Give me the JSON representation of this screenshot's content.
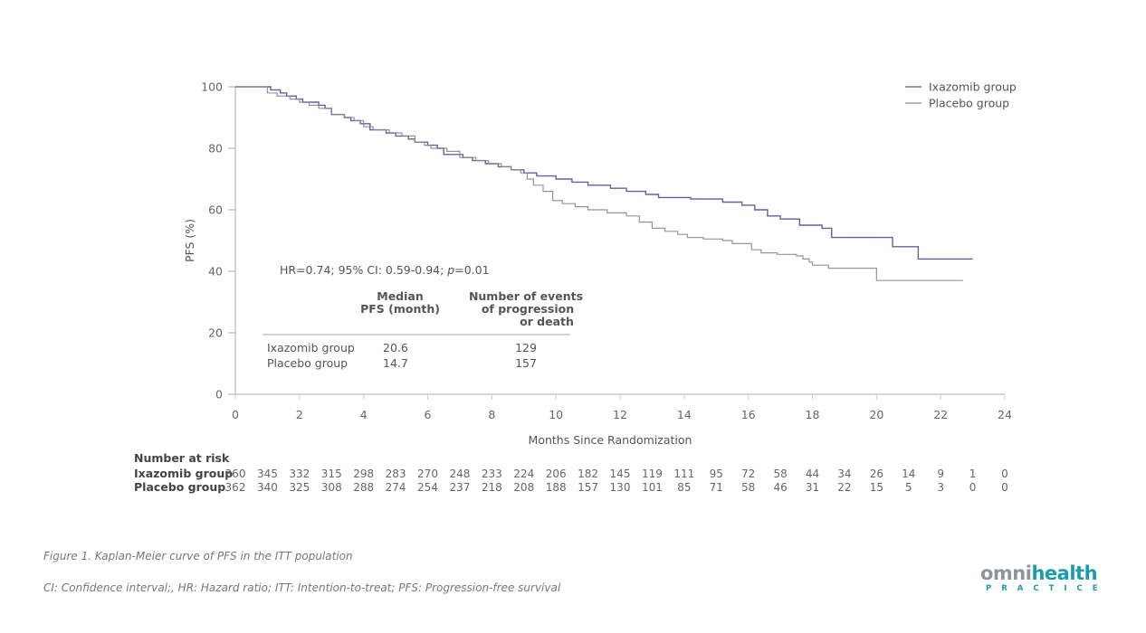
{
  "chart_data": {
    "type": "line",
    "subtype": "kaplan-meier-step",
    "ylabel": "PFS (%)",
    "xlabel": "Months Since Randomization",
    "xlim": [
      0,
      24
    ],
    "ylim": [
      0,
      100
    ],
    "x_ticks": [
      0,
      2,
      4,
      6,
      8,
      10,
      12,
      14,
      16,
      18,
      20,
      22,
      24
    ],
    "y_ticks": [
      0,
      20,
      40,
      60,
      80,
      100
    ],
    "grid": false,
    "legend_position": "top-right",
    "series": [
      {
        "name": "Ixazomib group",
        "color": "#5b4a9b",
        "points": [
          [
            0,
            100
          ],
          [
            0.9,
            100
          ],
          [
            1.1,
            99
          ],
          [
            1.4,
            98
          ],
          [
            1.6,
            97
          ],
          [
            1.9,
            96
          ],
          [
            2.1,
            95
          ],
          [
            2.6,
            94
          ],
          [
            2.8,
            93
          ],
          [
            3.0,
            91
          ],
          [
            3.4,
            90
          ],
          [
            3.6,
            89
          ],
          [
            3.9,
            88
          ],
          [
            4.2,
            86
          ],
          [
            4.7,
            85
          ],
          [
            5.0,
            84
          ],
          [
            5.4,
            83
          ],
          [
            5.6,
            82
          ],
          [
            6.0,
            81
          ],
          [
            6.3,
            80
          ],
          [
            6.5,
            78
          ],
          [
            6.8,
            78
          ],
          [
            7.1,
            77
          ],
          [
            7.4,
            76
          ],
          [
            7.8,
            75
          ],
          [
            8.2,
            74
          ],
          [
            8.6,
            73
          ],
          [
            9.0,
            72
          ],
          [
            9.4,
            71
          ],
          [
            10.0,
            70
          ],
          [
            10.5,
            69
          ],
          [
            11.0,
            68
          ],
          [
            11.7,
            67
          ],
          [
            12.2,
            66
          ],
          [
            12.8,
            65
          ],
          [
            13.2,
            64
          ],
          [
            14.2,
            63.5
          ],
          [
            15.2,
            62.5
          ],
          [
            15.8,
            61.5
          ],
          [
            16.2,
            60
          ],
          [
            16.6,
            58
          ],
          [
            17.0,
            57
          ],
          [
            17.6,
            55
          ],
          [
            18.3,
            54
          ],
          [
            18.6,
            51
          ],
          [
            18.9,
            51
          ],
          [
            20.5,
            48
          ],
          [
            21.3,
            44
          ],
          [
            23.0,
            44
          ]
        ]
      },
      {
        "name": "Placebo group",
        "color": "#8a8a8a",
        "points": [
          [
            0,
            100
          ],
          [
            0.9,
            100
          ],
          [
            1.0,
            98
          ],
          [
            1.3,
            97
          ],
          [
            1.7,
            96
          ],
          [
            2.0,
            95
          ],
          [
            2.3,
            94
          ],
          [
            2.6,
            93
          ],
          [
            3.0,
            91
          ],
          [
            3.4,
            90
          ],
          [
            3.7,
            89
          ],
          [
            4.0,
            87
          ],
          [
            4.3,
            86
          ],
          [
            4.8,
            85
          ],
          [
            5.2,
            84
          ],
          [
            5.6,
            82
          ],
          [
            5.9,
            81
          ],
          [
            6.1,
            80
          ],
          [
            6.6,
            79
          ],
          [
            7.0,
            77
          ],
          [
            7.5,
            76
          ],
          [
            7.9,
            75
          ],
          [
            8.3,
            74
          ],
          [
            8.6,
            73
          ],
          [
            8.9,
            72
          ],
          [
            9.1,
            70
          ],
          [
            9.3,
            68
          ],
          [
            9.6,
            66
          ],
          [
            9.9,
            63
          ],
          [
            10.2,
            62
          ],
          [
            10.6,
            61
          ],
          [
            11.0,
            60
          ],
          [
            11.6,
            59
          ],
          [
            12.2,
            58
          ],
          [
            12.6,
            56
          ],
          [
            13.0,
            54
          ],
          [
            13.4,
            53
          ],
          [
            13.8,
            52
          ],
          [
            14.1,
            51
          ],
          [
            14.6,
            50.5
          ],
          [
            15.2,
            50
          ],
          [
            15.5,
            49
          ],
          [
            16.0,
            49
          ],
          [
            16.1,
            47
          ],
          [
            16.4,
            46
          ],
          [
            16.8,
            46
          ],
          [
            16.9,
            45.5
          ],
          [
            17.5,
            45
          ],
          [
            17.7,
            44
          ],
          [
            17.9,
            43
          ],
          [
            18.0,
            42
          ],
          [
            18.5,
            41
          ],
          [
            18.8,
            41
          ],
          [
            20.0,
            37
          ],
          [
            22.7,
            37
          ]
        ]
      }
    ],
    "annotation": {
      "hr_text_prefix": "HR=0.74; 95% CI: 0.59-0.94; ",
      "p_symbol": "p",
      "p_value": "=0.01",
      "table_headers": [
        [
          "Median",
          "PFS (month)"
        ],
        [
          "Number of events",
          "of progression",
          "or death"
        ]
      ],
      "table_rows": [
        {
          "group": "Ixazomib group",
          "median_pfs": "20.6",
          "events": "129"
        },
        {
          "group": "Placebo group",
          "median_pfs": "14.7",
          "events": "157"
        }
      ]
    },
    "number_at_risk": {
      "title": "Number at risk",
      "months": [
        0,
        1,
        2,
        3,
        4,
        5,
        6,
        7,
        8,
        9,
        10,
        11,
        12,
        13,
        14,
        15,
        16,
        17,
        18,
        19,
        20,
        21,
        22,
        23,
        24
      ],
      "rows": [
        {
          "label": "Ixazomib group",
          "values": [
            360,
            345,
            332,
            315,
            298,
            283,
            270,
            248,
            233,
            224,
            206,
            182,
            145,
            119,
            111,
            95,
            72,
            58,
            44,
            34,
            26,
            14,
            9,
            1,
            0
          ]
        },
        {
          "label": "Placebo group",
          "values": [
            362,
            340,
            325,
            308,
            288,
            274,
            254,
            237,
            218,
            208,
            188,
            157,
            130,
            101,
            85,
            71,
            58,
            46,
            31,
            22,
            15,
            5,
            3,
            0,
            0
          ]
        }
      ]
    }
  },
  "captions": {
    "figure": "Figure 1. Kaplan-Meier curve of PFS in the ITT population",
    "abbreviations": "CI: Confidence interval;, HR: Hazard ratio; ITT: Intention-to-treat; PFS: Progression-free survival"
  },
  "logo": {
    "brand_a": "omni",
    "brand_b": "health",
    "sub": "PRACTICE"
  }
}
